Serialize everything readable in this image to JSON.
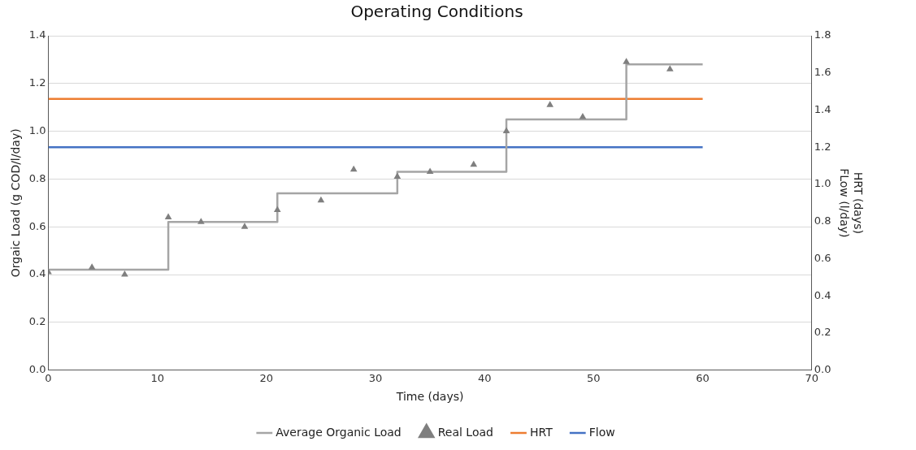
{
  "chart_data": {
    "type": "line",
    "title": "Operating Conditions",
    "xlabel": "Time (days)",
    "ylabel": "Orgaic Load (g COD/l/day)",
    "y2label": "HRT (days)\nFLow (l/day)",
    "xlim": [
      0,
      70
    ],
    "xticks": [
      0,
      10,
      20,
      30,
      40,
      50,
      60,
      70
    ],
    "ylim": [
      0,
      1.4
    ],
    "yticks": [
      {
        "value": 0,
        "label": "0.0"
      },
      0.2,
      0.4,
      0.6,
      0.8,
      {
        "value": 1,
        "label": "1.0"
      },
      1.2,
      1.4
    ],
    "y2lim": [
      0,
      1.8
    ],
    "y2ticks": [
      {
        "value": 0,
        "label": "0.0"
      },
      0.2,
      0.4,
      0.6,
      0.8,
      {
        "value": 1,
        "label": "1.0"
      },
      1.2,
      1.4,
      1.6,
      1.8
    ],
    "grid": "y",
    "legend": "bottom",
    "series": [
      {
        "name": "Average Organic Load",
        "type": "step",
        "color": "#a5a5a5",
        "marker": "none",
        "x": [
          0,
          11,
          21,
          32,
          42,
          53,
          60
        ],
        "values": [
          0.42,
          0.62,
          0.74,
          0.83,
          1.05,
          1.28,
          1.28
        ]
      },
      {
        "name": "Real Load",
        "type": "scatter",
        "color": "#7f7f7f",
        "marker": "triangle",
        "x": [
          0,
          4,
          7,
          11,
          14,
          18,
          21,
          25,
          28,
          32,
          35,
          39,
          42,
          46,
          49,
          53,
          57
        ],
        "values": [
          0.41,
          0.43,
          0.4,
          0.64,
          0.62,
          0.6,
          0.67,
          0.71,
          0.84,
          0.81,
          0.83,
          0.86,
          1.0,
          1.11,
          1.06,
          1.29,
          1.26
        ]
      },
      {
        "name": "HRT",
        "axis": "y2",
        "color": "#ed7d31",
        "marker": "none",
        "x": [
          0,
          60
        ],
        "values": [
          1.46,
          1.46
        ]
      },
      {
        "name": "Flow",
        "axis": "y2",
        "color": "#4472c4",
        "marker": "none",
        "x": [
          0,
          60
        ],
        "values": [
          1.2,
          1.2
        ]
      }
    ]
  }
}
